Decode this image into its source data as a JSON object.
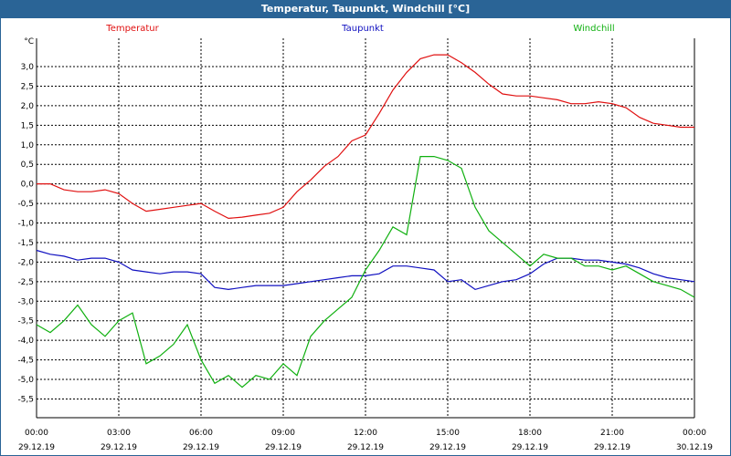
{
  "window_title": "Temperatur, Taupunkt, Windchill [°C]",
  "chart_data": {
    "type": "line",
    "title": "Temperatur, Taupunkt, Windchill [°C]",
    "ylabel": "°C",
    "ylim": [
      -6.0,
      3.5
    ],
    "yticks": [
      "3,0",
      "2,5",
      "2,0",
      "1,5",
      "1,0",
      "0,5",
      "0,0",
      "-0,5",
      "-1,0",
      "-1,5",
      "-2,0",
      "-2,5",
      "-3,0",
      "-3,5",
      "-4,0",
      "-4,5",
      "-5,0",
      "-5,5"
    ],
    "ytick_values": [
      3.0,
      2.5,
      2.0,
      1.5,
      1.0,
      0.5,
      0.0,
      -0.5,
      -1.0,
      -1.5,
      -2.0,
      -2.5,
      -3.0,
      -3.5,
      -4.0,
      -4.5,
      -5.0,
      -5.5
    ],
    "xlim": [
      0,
      24
    ],
    "xticks": [
      {
        "x": 0,
        "time": "00:00",
        "date": "29.12.19"
      },
      {
        "x": 3,
        "time": "03:00",
        "date": "29.12.19"
      },
      {
        "x": 6,
        "time": "06:00",
        "date": "29.12.19"
      },
      {
        "x": 9,
        "time": "09:00",
        "date": "29.12.19"
      },
      {
        "x": 12,
        "time": "12:00",
        "date": "29.12.19"
      },
      {
        "x": 15,
        "time": "15:00",
        "date": "29.12.19"
      },
      {
        "x": 18,
        "time": "18:00",
        "date": "29.12.19"
      },
      {
        "x": 21,
        "time": "21:00",
        "date": "29.12.19"
      },
      {
        "x": 24,
        "time": "00:00",
        "date": "30.12.19"
      }
    ],
    "series": [
      {
        "name": "Temperatur",
        "color": "#e01010",
        "x": [
          0,
          0.5,
          1,
          1.5,
          2,
          2.5,
          3,
          3.5,
          4,
          4.5,
          5,
          5.5,
          6,
          6.5,
          7,
          7.5,
          8,
          8.5,
          9,
          9.5,
          10,
          10.5,
          11,
          11.5,
          12,
          12.5,
          13,
          13.5,
          14,
          14.5,
          15,
          15.5,
          16,
          16.5,
          17,
          17.5,
          18,
          18.5,
          19,
          19.5,
          20,
          20.5,
          21,
          21.5,
          22,
          22.5,
          23,
          23.5,
          24
        ],
        "values": [
          0.0,
          0.0,
          -0.15,
          -0.2,
          -0.2,
          -0.15,
          -0.25,
          -0.5,
          -0.7,
          -0.65,
          -0.6,
          -0.55,
          -0.5,
          -0.7,
          -0.88,
          -0.85,
          -0.8,
          -0.75,
          -0.6,
          -0.2,
          0.1,
          0.45,
          0.7,
          1.1,
          1.25,
          1.8,
          2.4,
          2.85,
          3.2,
          3.3,
          3.3,
          3.1,
          2.85,
          2.55,
          2.3,
          2.25,
          2.25,
          2.2,
          2.15,
          2.05,
          2.05,
          2.1,
          2.05,
          1.95,
          1.7,
          1.55,
          1.5,
          1.45,
          1.45
        ]
      },
      {
        "name": "Taupunkt",
        "color": "#1010c0",
        "x": [
          0,
          0.5,
          1,
          1.5,
          2,
          2.5,
          3,
          3.5,
          4,
          4.5,
          5,
          5.5,
          6,
          6.5,
          7,
          7.5,
          8,
          8.5,
          9,
          9.5,
          10,
          10.5,
          11,
          11.5,
          12,
          12.5,
          13,
          13.5,
          14,
          14.5,
          15,
          15.5,
          16,
          16.5,
          17,
          17.5,
          18,
          18.5,
          19,
          19.5,
          20,
          20.5,
          21,
          21.5,
          22,
          22.5,
          23,
          23.5,
          24
        ],
        "values": [
          -1.7,
          -1.8,
          -1.85,
          -1.95,
          -1.9,
          -1.9,
          -2.0,
          -2.2,
          -2.25,
          -2.3,
          -2.25,
          -2.25,
          -2.3,
          -2.65,
          -2.7,
          -2.65,
          -2.6,
          -2.6,
          -2.6,
          -2.55,
          -2.5,
          -2.45,
          -2.4,
          -2.35,
          -2.35,
          -2.3,
          -2.1,
          -2.1,
          -2.15,
          -2.2,
          -2.5,
          -2.45,
          -2.7,
          -2.6,
          -2.5,
          -2.45,
          -2.3,
          -2.05,
          -1.9,
          -1.9,
          -1.95,
          -1.95,
          -2.0,
          -2.05,
          -2.15,
          -2.3,
          -2.4,
          -2.45,
          -2.5
        ]
      },
      {
        "name": "Windchill",
        "color": "#10b010",
        "x": [
          0,
          0.5,
          1,
          1.5,
          2,
          2.5,
          3,
          3.5,
          4,
          4.5,
          5,
          5.5,
          6,
          6.5,
          7,
          7.5,
          8,
          8.5,
          9,
          9.5,
          10,
          10.5,
          11,
          11.5,
          12,
          12.5,
          13,
          13.5,
          14,
          14.5,
          15,
          15.5,
          16,
          16.5,
          17,
          17.5,
          18,
          18.5,
          19,
          19.5,
          20,
          20.5,
          21,
          21.5,
          22,
          22.5,
          23,
          23.5,
          24
        ],
        "values": [
          -3.6,
          -3.8,
          -3.5,
          -3.1,
          -3.6,
          -3.9,
          -3.5,
          -3.3,
          -4.6,
          -4.4,
          -4.1,
          -3.6,
          -4.5,
          -5.1,
          -4.9,
          -5.2,
          -4.9,
          -5.0,
          -4.6,
          -4.9,
          -3.9,
          -3.5,
          -3.2,
          -2.9,
          -2.2,
          -1.7,
          -1.1,
          -1.3,
          0.7,
          0.7,
          0.6,
          0.4,
          -0.6,
          -1.2,
          -1.5,
          -1.8,
          -2.1,
          -1.8,
          -1.9,
          -1.9,
          -2.1,
          -2.1,
          -2.2,
          -2.1,
          -2.3,
          -2.5,
          -2.6,
          -2.7,
          -2.9
        ]
      }
    ],
    "legend": [
      "Temperatur",
      "Taupunkt",
      "Windchill"
    ]
  }
}
